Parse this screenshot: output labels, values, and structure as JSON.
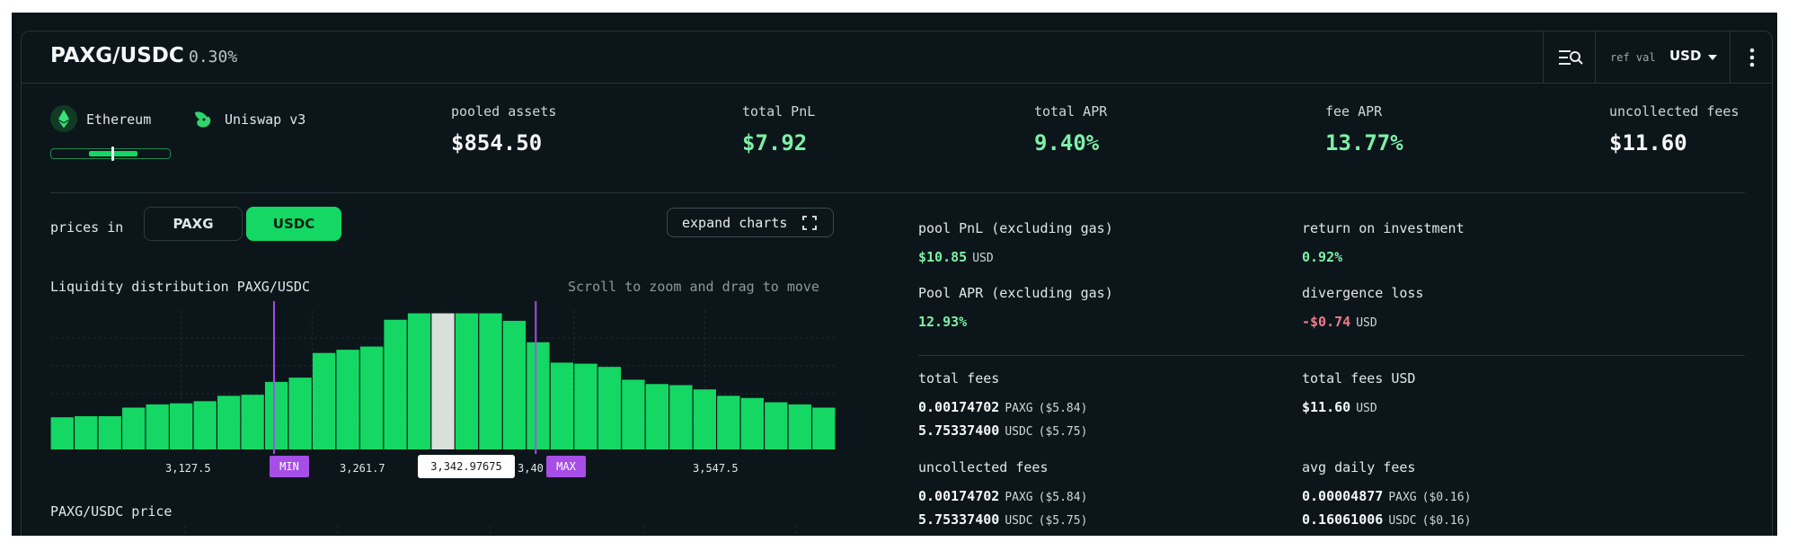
{
  "header": {
    "pair": "PAXG/USDC",
    "fee_tier": "0.30%",
    "ref_val_label": "ref val",
    "ref_val_value": "USD"
  },
  "badges": {
    "chain": "Ethereum",
    "protocol": "Uniswap v3"
  },
  "range_indicator": {
    "in_range_fraction_start": 0.31,
    "in_range_fraction_end": 0.72,
    "current_fraction": 0.5
  },
  "stats": [
    {
      "label": "pooled assets",
      "value": "$854.50"
    },
    {
      "label": "total PnL",
      "value": "$7.92"
    },
    {
      "label": "total APR",
      "value": "9.40%"
    },
    {
      "label": "fee APR",
      "value": "13.77%"
    },
    {
      "label": "uncollected fees",
      "value": "$11.60"
    }
  ],
  "controls": {
    "prices_in_label": "prices in",
    "toggle_paxg": "PAXG",
    "toggle_usdc": "USDC",
    "toggle_selected": "USDC",
    "expand_charts": "expand charts"
  },
  "chart_data": {
    "type": "bar",
    "title": "Liquidity distribution PAXG/USDC",
    "hint": "Scroll to zoom and drag to move",
    "x_tick_labels": [
      "3,127.5",
      "3,261.7",
      "3,40",
      "3,547.5"
    ],
    "min_label": "MIN",
    "max_label": "MAX",
    "current_price_label": "3,342.97675",
    "current_bar_index": 16,
    "min_bar_index": 9,
    "max_bar_index": 20,
    "values": [
      30,
      31,
      31,
      39,
      42,
      43,
      45,
      50,
      51,
      63,
      67,
      90,
      93,
      96,
      121,
      127,
      127,
      127,
      127,
      120,
      100,
      81,
      80,
      77,
      65,
      61,
      60,
      56,
      50,
      48,
      44,
      42,
      39
    ],
    "ylim": [
      0,
      130
    ],
    "colors": {
      "bar": "#14d863",
      "current": "#d9e0dc",
      "range_line": "#a64ee6"
    }
  },
  "price_chart": {
    "title": "PAXG/USDC price"
  },
  "details": {
    "pool_pnl": {
      "label": "pool PnL (excluding gas)",
      "value": "$10.85",
      "unit": "USD"
    },
    "roi": {
      "label": "return on investment",
      "value": "0.92%"
    },
    "pool_apr": {
      "label": "Pool APR (excluding gas)",
      "value": "12.93%"
    },
    "divergence": {
      "label": "divergence loss",
      "value": "-$0.74",
      "unit": "USD"
    },
    "total_fees": {
      "label": "total fees",
      "paxg_amount": "0.00174702",
      "paxg_unit": "PAXG",
      "paxg_usd": "($5.84)",
      "usdc_amount": "5.75337400",
      "usdc_unit": "USDC",
      "usdc_usd": "($5.75)"
    },
    "total_fees_usd": {
      "label": "total fees USD",
      "value": "$11.60",
      "unit": "USD"
    },
    "uncollected_fees": {
      "label": "uncollected fees",
      "paxg_amount": "0.00174702",
      "paxg_unit": "PAXG",
      "paxg_usd": "($5.84)",
      "usdc_amount": "5.75337400",
      "usdc_unit": "USDC",
      "usdc_usd": "($5.75)"
    },
    "avg_daily_fees": {
      "label": "avg daily fees",
      "paxg_amount": "0.00004877",
      "paxg_unit": "PAXG",
      "paxg_usd": "($0.16)",
      "usdc_amount": "0.16061006",
      "usdc_unit": "USDC",
      "usdc_usd": "($0.16)"
    }
  },
  "icons": {
    "chain": "ethereum-icon",
    "protocol": "uniswap-icon",
    "filter": "filter-search-icon",
    "more": "more-vertical-icon",
    "expand": "expand-icon",
    "caret": "chevron-down-icon"
  }
}
